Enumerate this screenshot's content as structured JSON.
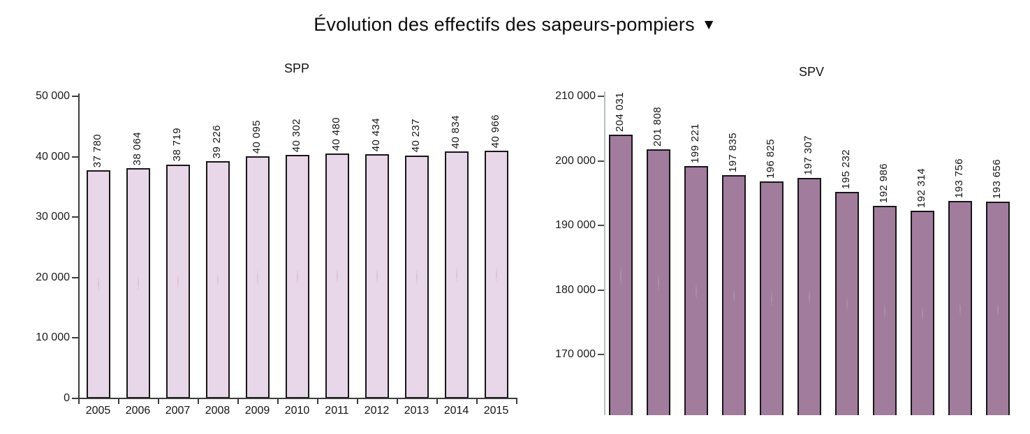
{
  "figure": {
    "title": "Évolution des effectifs des sapeurs-pompiers",
    "title_marker": "▼"
  },
  "chart_data": [
    {
      "id": "spp",
      "type": "bar",
      "title": "SPP",
      "categories": [
        "2005",
        "2006",
        "2007",
        "2008",
        "2009",
        "2010",
        "2011",
        "2012",
        "2013",
        "2014",
        "2015"
      ],
      "values": [
        37780,
        38064,
        38719,
        39226,
        40095,
        40302,
        40480,
        40434,
        40237,
        40834,
        40966
      ],
      "bar_labels": [
        "37 780",
        "38 064",
        "38 719",
        "39 226",
        "40 095",
        "40 302",
        "40 480",
        "40 434",
        "40 237",
        "40 834",
        "40 966"
      ],
      "ylim": [
        0,
        50000
      ],
      "yticks": [
        {
          "value": 0,
          "label": "0"
        },
        {
          "value": 10000,
          "label": "10 000"
        },
        {
          "value": 20000,
          "label": "20 000"
        },
        {
          "value": 30000,
          "label": "30 000"
        },
        {
          "value": 40000,
          "label": "40 000"
        },
        {
          "value": 50000,
          "label": "50 000"
        }
      ],
      "x_axis_visible": true,
      "grid": false,
      "legend": "none",
      "bar_color": "#e8d7e8",
      "bar_dot_color": "rgba(190,146,190,0.28)",
      "bar_border_color": "#161616",
      "axis_color": "#3c3c3c",
      "tick_color": "#3c3c3c"
    },
    {
      "id": "spv",
      "type": "bar",
      "title": "SPV",
      "categories": [],
      "values": [
        204031,
        201808,
        199221,
        197835,
        196825,
        197307,
        195232,
        192986,
        192314,
        193756,
        193656
      ],
      "bar_labels": [
        "204 031",
        "201 808",
        "199 221",
        "197 835",
        "196 825",
        "197 307",
        "195 232",
        "192 986",
        "192 314",
        "193 756",
        "193 656"
      ],
      "ylim_visible": [
        161000,
        210000
      ],
      "yticks": [
        {
          "value": 170000,
          "label": "170 000"
        },
        {
          "value": 180000,
          "label": "180 000"
        },
        {
          "value": 190000,
          "label": "190 000"
        },
        {
          "value": 200000,
          "label": "200 000"
        },
        {
          "value": 210000,
          "label": "210 000"
        }
      ],
      "x_axis_visible": false,
      "truncated_bottom": true,
      "grid": false,
      "legend": "none",
      "bar_color": "#a17c9d",
      "bar_dot_color": "rgba(255,255,255,0.14)",
      "bar_border_color": "#161616",
      "axis_color": "#b6c0c2",
      "tick_color": "#4a4a4a"
    }
  ]
}
